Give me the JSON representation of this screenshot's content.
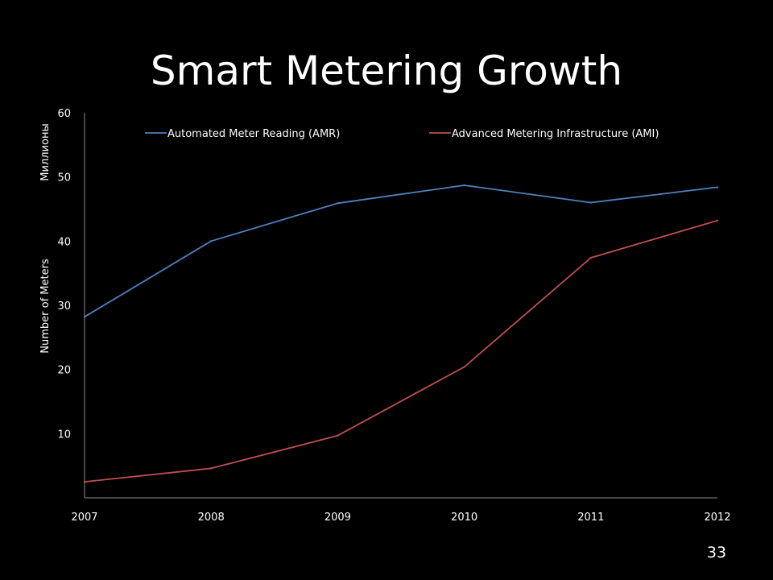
{
  "slide": {
    "title": "Smart Metering Growth",
    "page_number": "33"
  },
  "colors": {
    "background": "#000000",
    "axis": "#8c8c8c",
    "text": "#ffffff",
    "amr": "#4f81bd",
    "ami": "#c0504d"
  },
  "chart_data": {
    "type": "line",
    "title": "",
    "xlabel": "",
    "ylabel": "Number of Meters",
    "ylabel_unit": "Миллионы",
    "x": [
      "2007",
      "2008",
      "2009",
      "2010",
      "2011",
      "2012"
    ],
    "ylim": [
      0,
      60
    ],
    "yticks": [
      10,
      20,
      30,
      40,
      50,
      60
    ],
    "grid": false,
    "legend_position": "top",
    "series": [
      {
        "name": "Automated Meter Reading (AMR)",
        "color": "#4f81bd",
        "values": [
          28.2,
          40.0,
          45.9,
          48.7,
          46.0,
          48.4
        ]
      },
      {
        "name": "Advanced Metering Infrastructure (AMI)",
        "color": "#c0504d",
        "values": [
          2.5,
          4.6,
          9.7,
          20.4,
          37.4,
          43.2
        ]
      }
    ]
  }
}
